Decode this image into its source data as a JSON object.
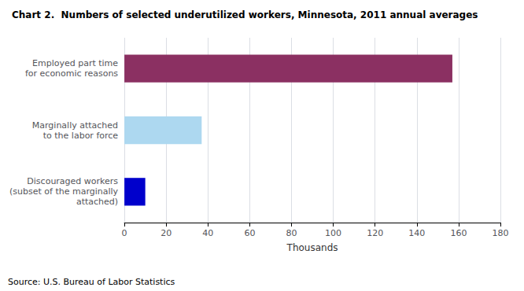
{
  "chart_data": {
    "type": "bar",
    "orientation": "horizontal",
    "title": "Chart 2.  Numbers of selected underutilized workers, Minnesota, 2011 annual averages",
    "source": "Source: U.S. Bureau of Labor Statistics",
    "categories": [
      "Discouraged workers\n(subset of the marginally\nattached)",
      "Marginally attached\nto the labor force",
      "Employed part time\nfor economic reasons"
    ],
    "values": [
      10,
      37,
      157
    ],
    "colors": [
      "#0000CC",
      "#ADD8F0",
      "#8B3062"
    ],
    "xlabel": "Thousands",
    "xlim": [
      0,
      180
    ],
    "xticks": [
      0,
      20,
      40,
      60,
      80,
      100,
      120,
      140,
      160,
      180
    ],
    "grid": true
  }
}
